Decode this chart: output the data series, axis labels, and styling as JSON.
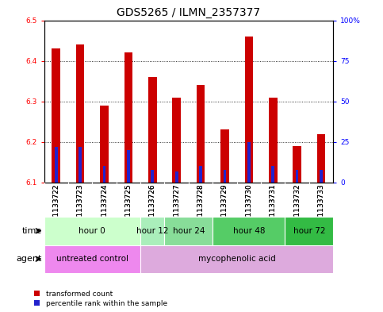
{
  "title": "GDS5265 / ILMN_2357377",
  "samples": [
    "GSM1133722",
    "GSM1133723",
    "GSM1133724",
    "GSM1133725",
    "GSM1133726",
    "GSM1133727",
    "GSM1133728",
    "GSM1133729",
    "GSM1133730",
    "GSM1133731",
    "GSM1133732",
    "GSM1133733"
  ],
  "transformed_count": [
    6.43,
    6.44,
    6.29,
    6.42,
    6.36,
    6.31,
    6.34,
    6.23,
    6.46,
    6.31,
    6.19,
    6.22
  ],
  "percentile_rank": [
    22,
    22,
    10,
    20,
    8,
    7,
    10,
    8,
    25,
    10,
    8,
    8
  ],
  "base_value": 6.1,
  "ylim": [
    6.1,
    6.5
  ],
  "yticks_left": [
    6.1,
    6.2,
    6.3,
    6.4,
    6.5
  ],
  "yticks_right": [
    0,
    25,
    50,
    75,
    100
  ],
  "right_ylim": [
    0,
    100
  ],
  "bar_color": "#cc0000",
  "blue_color": "#2222cc",
  "time_groups": [
    {
      "label": "hour 0",
      "start": 0,
      "end": 3,
      "color": "#ccffcc"
    },
    {
      "label": "hour 12",
      "start": 4,
      "end": 4,
      "color": "#aaeebb"
    },
    {
      "label": "hour 24",
      "start": 5,
      "end": 6,
      "color": "#88dd99"
    },
    {
      "label": "hour 48",
      "start": 7,
      "end": 9,
      "color": "#55cc66"
    },
    {
      "label": "hour 72",
      "start": 10,
      "end": 11,
      "color": "#33bb44"
    }
  ],
  "agent_groups": [
    {
      "label": "untreated control",
      "start": 0,
      "end": 3,
      "color": "#ee88ee"
    },
    {
      "label": "mycophenolic acid",
      "start": 4,
      "end": 11,
      "color": "#ddaadd"
    }
  ],
  "legend_red": "transformed count",
  "legend_blue": "percentile rank within the sample",
  "bar_width": 0.35,
  "blue_bar_width": 0.12,
  "title_fontsize": 10,
  "tick_fontsize": 6.5,
  "label_fontsize": 8,
  "annot_fontsize": 7.5,
  "sample_bg_color": "#cccccc",
  "sample_bg_color2": "#bbbbbb"
}
